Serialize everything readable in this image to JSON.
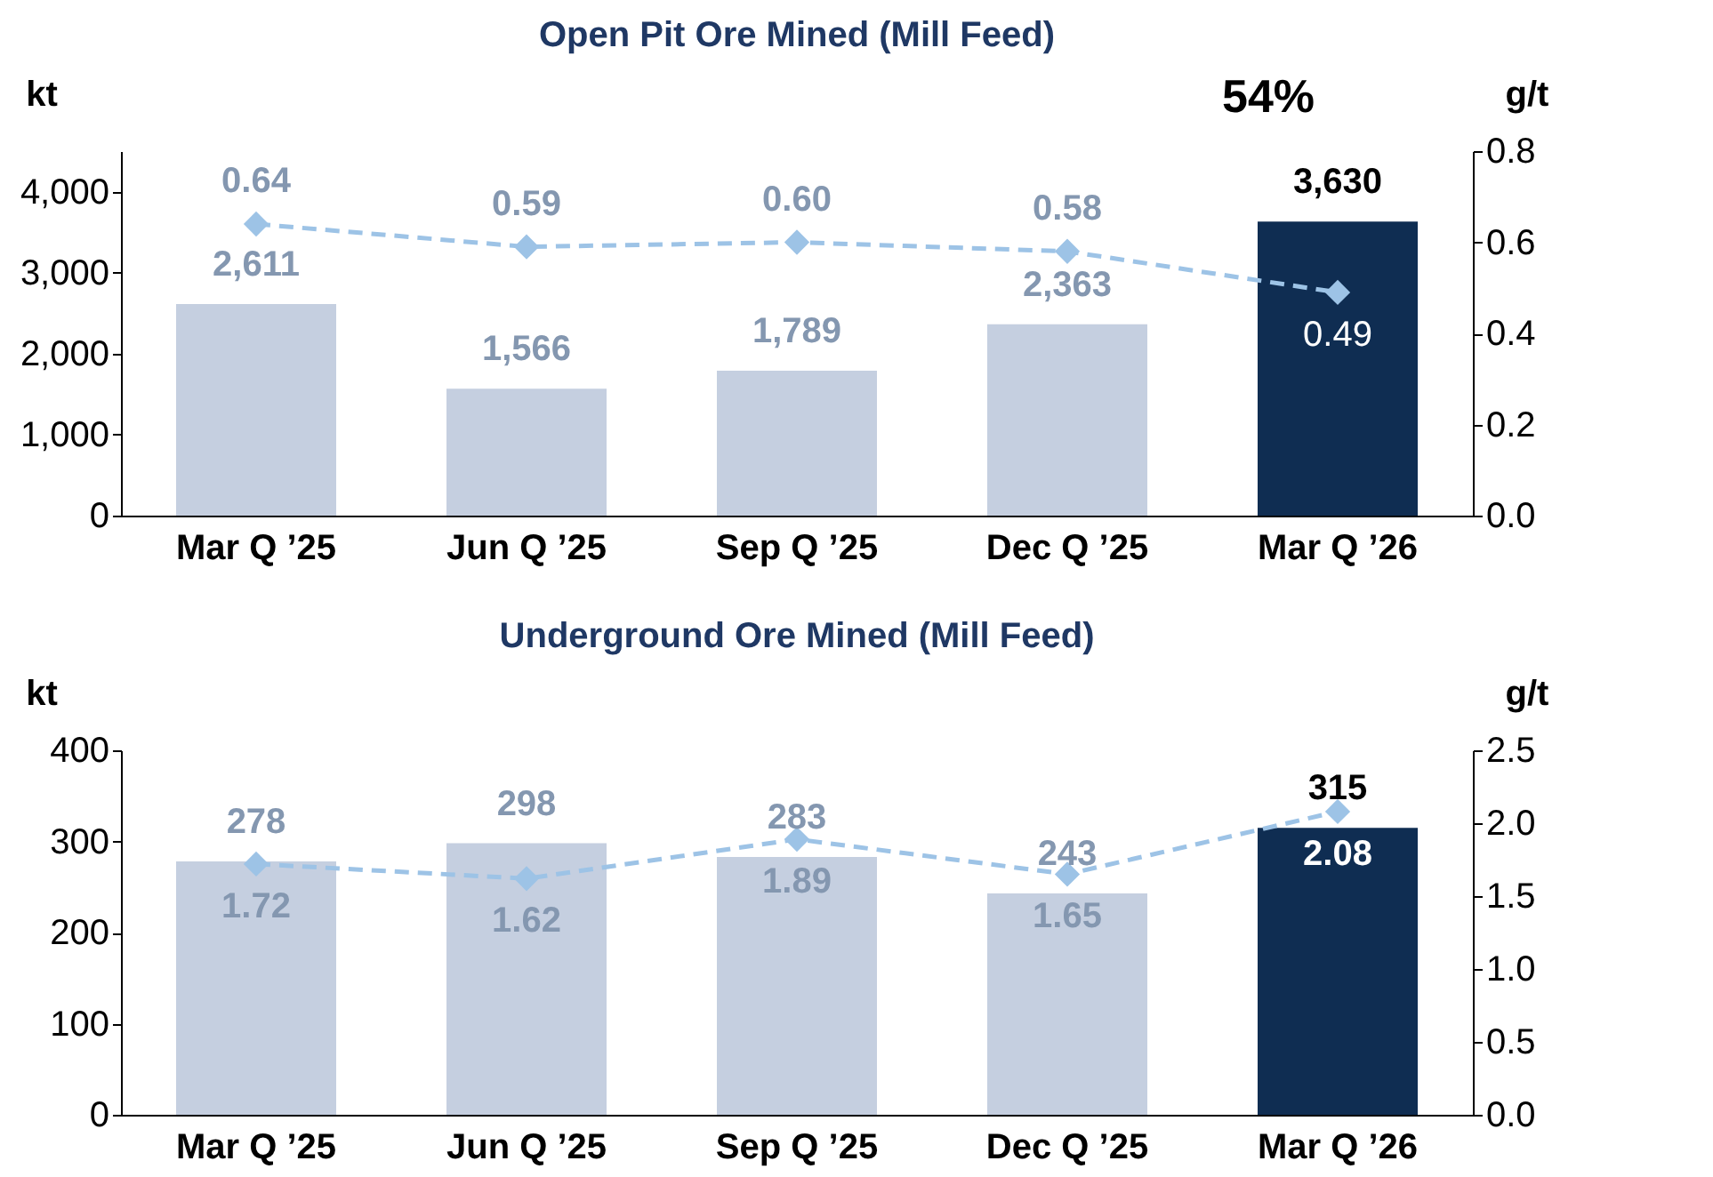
{
  "chart_data": [
    {
      "type": "bar",
      "title": "Open Pit Ore Mined (Mill Feed)",
      "ylabel": "kt",
      "y2label": "g/t",
      "categories": [
        "Mar Q ’25",
        "Jun Q ’25",
        "Sep Q ’25",
        "Dec Q ’25",
        "Mar Q ’26"
      ],
      "series": [
        {
          "values": [
            2611,
            1566,
            1789,
            2363,
            3630
          ],
          "colors": [
            "#c5cfe0",
            "#c5cfe0",
            "#c5cfe0",
            "#c5cfe0",
            "#0f2d52"
          ],
          "value_labels": [
            "2,611",
            "1,566",
            "1,789",
            "2,363",
            "3,630"
          ]
        },
        {
          "type": "line",
          "axis": "y2",
          "color": "#9dc3e6",
          "marker": "diamond",
          "line_style": "dashed",
          "values": [
            0.64,
            0.59,
            0.6,
            0.58,
            0.49
          ],
          "value_labels": [
            "0.64",
            "0.59",
            "0.60",
            "0.58",
            "0.49"
          ]
        }
      ],
      "ylim": [
        0,
        4500
      ],
      "yticks": [
        0,
        {
          "value": 1000,
          "label": "1,000"
        },
        {
          "value": 2000,
          "label": "2,000"
        },
        {
          "value": 3000,
          "label": "3,000"
        },
        {
          "value": 4000,
          "label": "4,000"
        }
      ],
      "y2lim": [
        0,
        0.8
      ],
      "y2ticks": [
        {
          "value": 0,
          "label": "0.0"
        },
        0.2,
        0.4,
        0.6,
        0.8
      ],
      "annotations": [
        "54%"
      ],
      "grid": false
    },
    {
      "type": "bar",
      "title": "Underground Ore Mined (Mill Feed)",
      "ylabel": "kt",
      "y2label": "g/t",
      "categories": [
        "Mar Q ’25",
        "Jun Q ’25",
        "Sep Q ’25",
        "Dec Q ’25",
        "Mar Q ’26"
      ],
      "series": [
        {
          "values": [
            278,
            298,
            283,
            243,
            315
          ],
          "colors": [
            "#c5cfe0",
            "#c5cfe0",
            "#c5cfe0",
            "#c5cfe0",
            "#0f2d52"
          ]
        },
        {
          "type": "line",
          "axis": "y2",
          "color": "#9dc3e6",
          "marker": "diamond",
          "line_style": "dashed",
          "values": [
            1.72,
            1.62,
            1.89,
            1.65,
            2.08
          ]
        }
      ],
      "ylim": [
        0,
        400
      ],
      "yticks": [
        0,
        100,
        200,
        300,
        400
      ],
      "y2lim": [
        0,
        2.5
      ],
      "y2ticks": [
        {
          "value": 0,
          "label": "0.0"
        },
        0.5,
        {
          "value": 1,
          "label": "1.0"
        },
        1.5,
        {
          "value": 2,
          "label": "2.0"
        },
        2.5
      ],
      "data_labels": true,
      "grid": false
    }
  ]
}
